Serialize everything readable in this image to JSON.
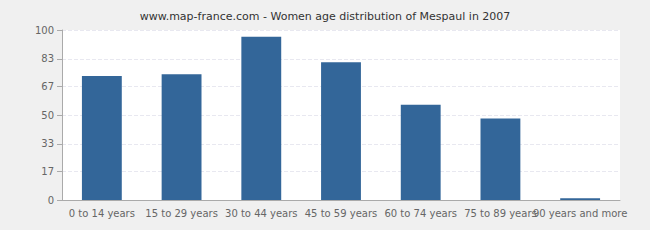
{
  "chart_data": {
    "type": "bar",
    "title": "www.map-france.com - Women age distribution of Mespaul in 2007",
    "categories": [
      "0 to 14 years",
      "15 to 29 years",
      "30 to 44 years",
      "45 to 59 years",
      "60 to 74 years",
      "75 to 89 years",
      "90 years and more"
    ],
    "values": [
      73,
      74,
      96,
      81,
      56,
      48,
      1
    ],
    "color": "#336699",
    "ylim": [
      0,
      100
    ],
    "yticks": [
      0,
      17,
      33,
      50,
      67,
      83,
      100
    ],
    "grid": true
  }
}
